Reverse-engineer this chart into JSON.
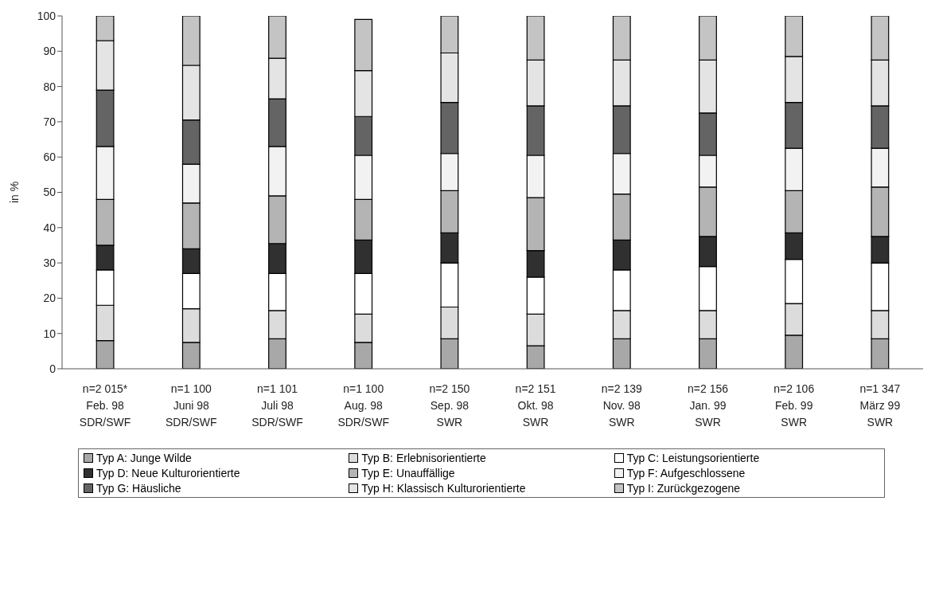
{
  "chart_data": {
    "type": "bar",
    "stacked": true,
    "ylabel": "in %",
    "legend": "bottom",
    "grid": false,
    "categories": [
      "n=2 015*\nFeb. 98\nSDR/SWF",
      "n=1 100\nJuni 98\nSDR/SWF",
      "n=1 101\nJuli 98\nSDR/SWF",
      "n=1 100\nAug. 98\nSDR/SWF",
      "n=2 150\nSep. 98\nSWR",
      "n=2 151\nOkt. 98\nSWR",
      "n=2 139\nNov. 98\nSWR",
      "n=2 156\nJan. 99\nSWR",
      "n=2 106\nFeb. 99\nSWR",
      "n=1 347\nMärz 99\nSWR"
    ],
    "ylim": [
      0,
      100
    ],
    "yticks": [
      0,
      10,
      20,
      30,
      40,
      50,
      60,
      70,
      80,
      90,
      100
    ],
    "series": [
      {
        "name": "Typ A: Junge Wilde",
        "color": "#a8a8a8",
        "values": [
          8,
          7.5,
          8.5,
          7.5,
          8.5,
          6.5,
          8.5,
          8.5,
          9.5,
          8.5
        ]
      },
      {
        "name": "Typ B: Erlebnisorientierte",
        "color": "#dcdcdc",
        "values": [
          10,
          9.5,
          8,
          8,
          9,
          9,
          8,
          8,
          9,
          8
        ]
      },
      {
        "name": "Typ C: Leistungsorientierte",
        "color": "#ffffff",
        "values": [
          10,
          10,
          10.5,
          11.5,
          12.5,
          10.5,
          11.5,
          12.5,
          12.5,
          13.5
        ]
      },
      {
        "name": "Typ D: Neue Kulturorientierte",
        "color": "#303030",
        "values": [
          7,
          7,
          8.5,
          9.5,
          8.5,
          7.5,
          8.5,
          8.5,
          7.5,
          7.5
        ]
      },
      {
        "name": "Typ E: Unauffällige",
        "color": "#b4b4b4",
        "values": [
          13,
          13,
          13.5,
          11.5,
          12,
          15,
          13,
          14,
          12,
          14
        ]
      },
      {
        "name": "Typ F: Aufgeschlossene",
        "color": "#f2f2f2",
        "values": [
          15,
          11,
          14,
          12.5,
          10.5,
          12,
          11.5,
          9,
          12,
          11
        ]
      },
      {
        "name": "Typ G: Häusliche",
        "color": "#646464",
        "values": [
          16,
          12.5,
          13.5,
          11,
          14.5,
          14,
          13.5,
          12,
          13,
          12
        ]
      },
      {
        "name": "Typ H: Klassisch Kulturorientierte",
        "color": "#e4e4e4",
        "values": [
          14,
          15.5,
          11.5,
          13,
          14,
          13,
          13,
          15,
          13,
          13
        ]
      },
      {
        "name": "Typ I: Zurückgezogene",
        "color": "#c4c4c4",
        "values": [
          7,
          14,
          12,
          14.5,
          10.5,
          12.5,
          12.5,
          12.5,
          11.5,
          12.5
        ]
      }
    ]
  }
}
